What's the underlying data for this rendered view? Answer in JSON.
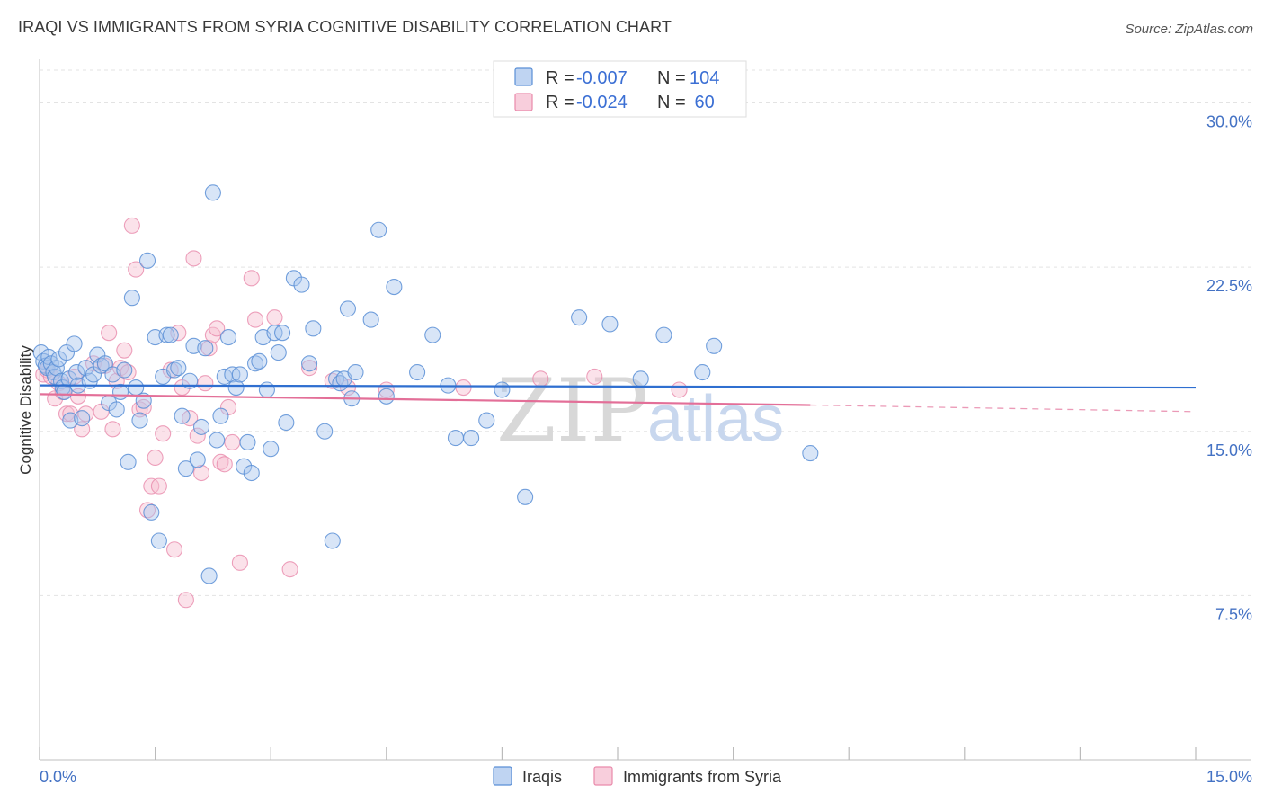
{
  "title": "IRAQI VS IMMIGRANTS FROM SYRIA COGNITIVE DISABILITY CORRELATION CHART",
  "source": "Source: ZipAtlas.com",
  "watermark": {
    "zip": "ZIP",
    "atlas": "atlas"
  },
  "colors": {
    "iraqis_fill": "#a9c6ee",
    "iraqis_stroke": "#5a8fd6",
    "iraqis_line": "#2f6fd0",
    "syria_fill": "#f6bed0",
    "syria_stroke": "#e98aab",
    "syria_line": "#e36f98",
    "grid": "#e3e3e3",
    "axis_text": "#4472c4"
  },
  "legend": {
    "row1": {
      "r_label": "R = ",
      "r_value": "-0.007",
      "n_label": "N = ",
      "n_value": "104"
    },
    "row2": {
      "r_label": "R = ",
      "r_value": "-0.024",
      "n_label": "N = ",
      "n_value": " 60"
    }
  },
  "chart_data": {
    "type": "scatter",
    "title": "IRAQI VS IMMIGRANTS FROM SYRIA COGNITIVE DISABILITY CORRELATION CHART",
    "xlabel": "",
    "ylabel": "Cognitive Disability",
    "xlim": [
      0,
      15
    ],
    "ylim": [
      0,
      31.5
    ],
    "x_tick_labels": [
      "0.0%",
      "15.0%"
    ],
    "y_ticks": [
      7.5,
      15.0,
      22.5,
      30.0
    ],
    "y_tick_labels": [
      "7.5%",
      "15.0%",
      "22.5%",
      "30.0%"
    ],
    "grid": true,
    "legend_position": "top-center",
    "series": [
      {
        "name": "Iraqis",
        "trend": {
          "x": [
            0,
            15
          ],
          "y": [
            17.1,
            17.0
          ]
        },
        "points": [
          [
            0.02,
            18.6
          ],
          [
            0.05,
            18.2
          ],
          [
            0.08,
            18.0
          ],
          [
            0.1,
            17.9
          ],
          [
            0.12,
            18.4
          ],
          [
            0.15,
            18.1
          ],
          [
            0.18,
            17.7
          ],
          [
            0.2,
            17.5
          ],
          [
            0.22,
            17.9
          ],
          [
            0.25,
            18.3
          ],
          [
            0.28,
            17.3
          ],
          [
            0.3,
            17.0
          ],
          [
            0.32,
            16.8
          ],
          [
            0.35,
            18.6
          ],
          [
            0.38,
            17.4
          ],
          [
            0.4,
            15.5
          ],
          [
            0.45,
            19.0
          ],
          [
            0.48,
            17.7
          ],
          [
            0.5,
            17.1
          ],
          [
            0.55,
            15.6
          ],
          [
            0.6,
            17.9
          ],
          [
            0.65,
            17.3
          ],
          [
            0.7,
            17.6
          ],
          [
            0.75,
            18.5
          ],
          [
            0.8,
            18.0
          ],
          [
            0.85,
            18.1
          ],
          [
            0.9,
            16.3
          ],
          [
            0.95,
            17.6
          ],
          [
            1.0,
            16.0
          ],
          [
            1.05,
            16.8
          ],
          [
            1.1,
            17.8
          ],
          [
            1.15,
            13.6
          ],
          [
            1.2,
            21.1
          ],
          [
            1.25,
            17.0
          ],
          [
            1.3,
            15.5
          ],
          [
            1.35,
            16.4
          ],
          [
            1.4,
            22.8
          ],
          [
            1.45,
            11.3
          ],
          [
            1.5,
            19.3
          ],
          [
            1.55,
            10.0
          ],
          [
            1.6,
            17.5
          ],
          [
            1.65,
            19.4
          ],
          [
            1.7,
            19.4
          ],
          [
            1.75,
            17.8
          ],
          [
            1.8,
            17.9
          ],
          [
            1.85,
            15.7
          ],
          [
            1.9,
            13.3
          ],
          [
            1.95,
            17.3
          ],
          [
            2.0,
            18.9
          ],
          [
            2.05,
            13.7
          ],
          [
            2.1,
            15.2
          ],
          [
            2.15,
            18.8
          ],
          [
            2.2,
            8.4
          ],
          [
            2.25,
            25.9
          ],
          [
            2.3,
            14.6
          ],
          [
            2.35,
            15.7
          ],
          [
            2.4,
            17.5
          ],
          [
            2.45,
            19.3
          ],
          [
            2.5,
            17.6
          ],
          [
            2.55,
            17.0
          ],
          [
            2.6,
            17.6
          ],
          [
            2.65,
            13.4
          ],
          [
            2.7,
            14.5
          ],
          [
            2.75,
            13.1
          ],
          [
            2.8,
            18.1
          ],
          [
            2.85,
            18.2
          ],
          [
            2.9,
            19.3
          ],
          [
            2.95,
            16.9
          ],
          [
            3.0,
            14.2
          ],
          [
            3.05,
            19.5
          ],
          [
            3.1,
            18.6
          ],
          [
            3.15,
            19.5
          ],
          [
            3.2,
            15.4
          ],
          [
            3.3,
            22.0
          ],
          [
            3.4,
            21.7
          ],
          [
            3.5,
            18.1
          ],
          [
            3.55,
            19.7
          ],
          [
            3.7,
            15.0
          ],
          [
            3.8,
            10.0
          ],
          [
            3.85,
            17.4
          ],
          [
            3.9,
            17.2
          ],
          [
            3.95,
            17.4
          ],
          [
            4.0,
            20.6
          ],
          [
            4.05,
            16.5
          ],
          [
            4.1,
            17.7
          ],
          [
            4.3,
            20.1
          ],
          [
            4.4,
            24.2
          ],
          [
            4.5,
            16.6
          ],
          [
            4.6,
            21.6
          ],
          [
            4.9,
            17.7
          ],
          [
            5.1,
            19.4
          ],
          [
            5.3,
            17.1
          ],
          [
            5.4,
            14.7
          ],
          [
            5.6,
            14.7
          ],
          [
            5.8,
            15.5
          ],
          [
            6.0,
            16.9
          ],
          [
            6.3,
            12.0
          ],
          [
            7.0,
            20.2
          ],
          [
            7.4,
            19.9
          ],
          [
            7.8,
            17.4
          ],
          [
            8.1,
            19.4
          ],
          [
            8.6,
            17.7
          ],
          [
            8.75,
            18.9
          ],
          [
            10.0,
            14.0
          ]
        ]
      },
      {
        "name": "Immigrants from Syria",
        "trend": {
          "x": [
            0,
            10.0,
            15
          ],
          "y": [
            16.7,
            16.2,
            15.9
          ],
          "solid_until": 10.0
        },
        "points": [
          [
            0.05,
            17.6
          ],
          [
            0.1,
            17.8
          ],
          [
            0.15,
            17.5
          ],
          [
            0.2,
            16.5
          ],
          [
            0.25,
            17.2
          ],
          [
            0.3,
            16.8
          ],
          [
            0.35,
            15.8
          ],
          [
            0.4,
            15.8
          ],
          [
            0.45,
            17.5
          ],
          [
            0.5,
            16.6
          ],
          [
            0.55,
            15.1
          ],
          [
            0.6,
            15.8
          ],
          [
            0.7,
            18.1
          ],
          [
            0.8,
            15.9
          ],
          [
            0.85,
            18.0
          ],
          [
            0.9,
            19.5
          ],
          [
            0.95,
            15.1
          ],
          [
            1.0,
            17.3
          ],
          [
            1.05,
            17.9
          ],
          [
            1.1,
            18.7
          ],
          [
            1.15,
            17.7
          ],
          [
            1.2,
            24.4
          ],
          [
            1.25,
            22.4
          ],
          [
            1.3,
            16.0
          ],
          [
            1.35,
            16.1
          ],
          [
            1.4,
            11.4
          ],
          [
            1.45,
            12.5
          ],
          [
            1.5,
            13.8
          ],
          [
            1.55,
            12.5
          ],
          [
            1.6,
            14.9
          ],
          [
            1.7,
            17.8
          ],
          [
            1.75,
            9.6
          ],
          [
            1.8,
            19.5
          ],
          [
            1.85,
            17.0
          ],
          [
            1.9,
            7.3
          ],
          [
            1.95,
            15.6
          ],
          [
            2.0,
            22.9
          ],
          [
            2.05,
            14.8
          ],
          [
            2.1,
            13.1
          ],
          [
            2.15,
            17.2
          ],
          [
            2.2,
            18.8
          ],
          [
            2.25,
            19.4
          ],
          [
            2.3,
            19.7
          ],
          [
            2.35,
            13.6
          ],
          [
            2.4,
            13.5
          ],
          [
            2.45,
            16.1
          ],
          [
            2.5,
            14.5
          ],
          [
            2.6,
            9.0
          ],
          [
            2.75,
            22.0
          ],
          [
            2.8,
            20.1
          ],
          [
            3.05,
            20.2
          ],
          [
            3.25,
            8.7
          ],
          [
            3.5,
            17.9
          ],
          [
            3.8,
            17.3
          ],
          [
            4.0,
            17.0
          ],
          [
            4.5,
            16.9
          ],
          [
            5.5,
            17.0
          ],
          [
            6.5,
            17.4
          ],
          [
            7.2,
            17.5
          ],
          [
            8.3,
            16.9
          ]
        ]
      }
    ]
  },
  "bottom_legend": [
    {
      "label": "Iraqis"
    },
    {
      "label": "Immigrants from Syria"
    }
  ]
}
